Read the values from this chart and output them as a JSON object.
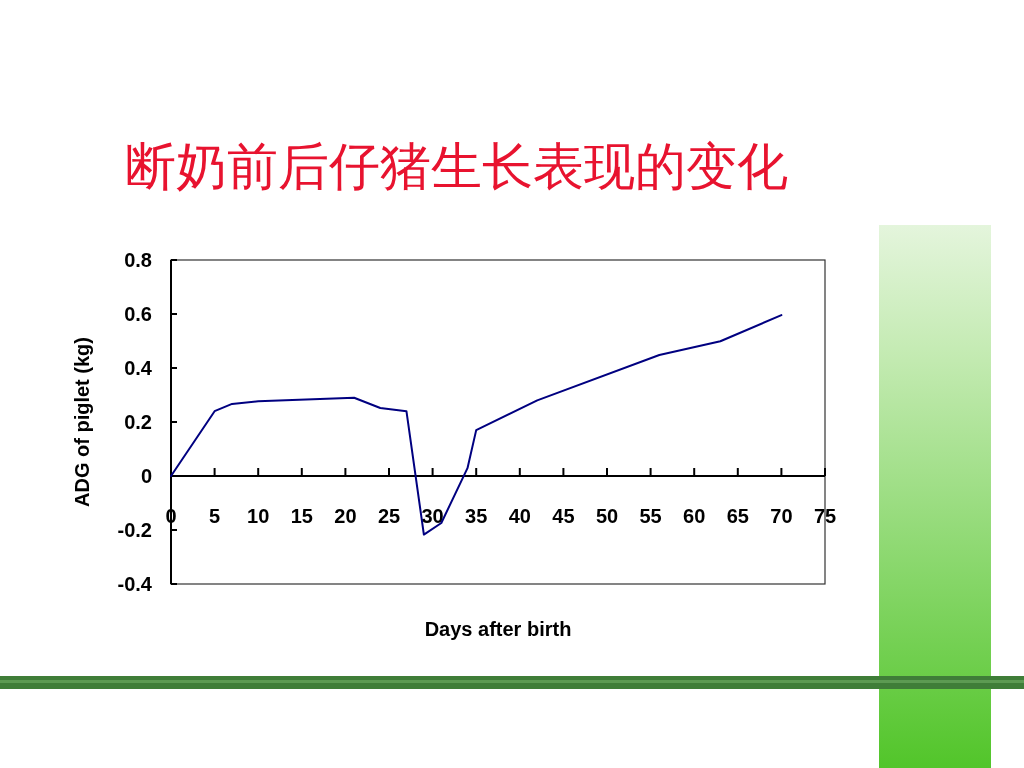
{
  "chart_data": {
    "type": "line",
    "title": "断奶前后仔猪生长表现的变化",
    "xlabel": "Days after birth",
    "ylabel": "ADG of piglet (kg)",
    "x": [
      0,
      5,
      7,
      10,
      21,
      24,
      27,
      29,
      31,
      34,
      35,
      42,
      56,
      63,
      70
    ],
    "series": [
      {
        "color": "#000080",
        "values": [
          0,
          0.24,
          0.267,
          0.277,
          0.29,
          0.252,
          0.24,
          -0.217,
          -0.174,
          0.029,
          0.17,
          0.28,
          0.448,
          0.499,
          0.596
        ]
      }
    ],
    "xlim": [
      0,
      75
    ],
    "xticks": [
      0,
      5,
      10,
      15,
      20,
      25,
      30,
      35,
      40,
      45,
      50,
      55,
      60,
      65,
      70,
      75
    ],
    "ylim": [
      -0.4,
      0.8
    ],
    "yticks": [
      -0.4,
      -0.2,
      0,
      0.2,
      0.4,
      0.6,
      0.8
    ],
    "line_style": "solid"
  }
}
